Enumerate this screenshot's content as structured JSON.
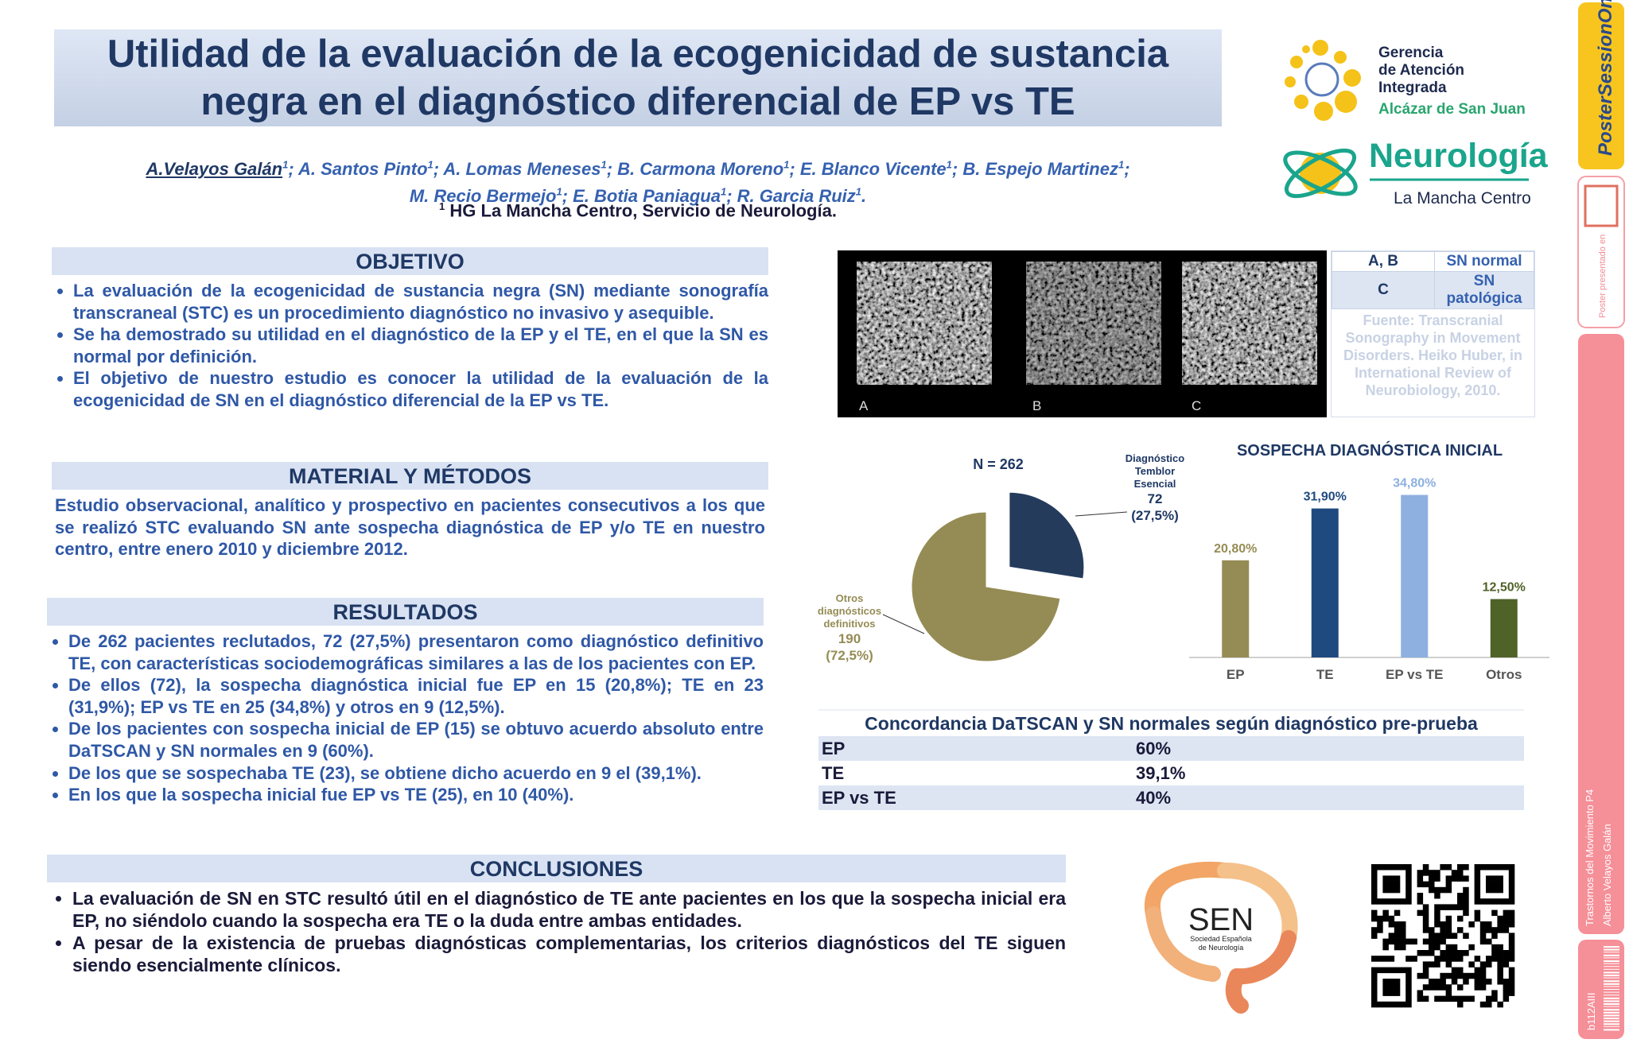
{
  "header": {
    "title": "Utilidad de la evaluación de la ecogenicidad de sustancia negra en el diagnóstico diferencial de EP vs TE",
    "authors": [
      [
        {
          "name": "A.Velayos Galán",
          "sup": "1",
          "sep": ";"
        },
        {
          "name": "A. Santos Pinto",
          "sup": "1",
          "sep": ";"
        },
        {
          "name": "A. Lomas Meneses",
          "sup": "1",
          "sep": ";"
        },
        {
          "name": "B. Carmona Moreno",
          "sup": "1",
          "sep": ";"
        },
        {
          "name": "E. Blanco Vicente",
          "sup": "1",
          "sep": ";"
        },
        {
          "name": "B. Espejo Martinez",
          "sup": "1",
          "sep": ";"
        }
      ],
      [
        {
          "name": "M. Recio Bermejo",
          "sup": "1",
          "sep": ";"
        },
        {
          "name": "E. Botia Paniagua",
          "sup": "1",
          "sep": ";"
        },
        {
          "name": "R. Garcia Ruiz",
          "sup": "1",
          "sep": "."
        }
      ]
    ],
    "affiliation": {
      "sup": "1",
      "text": "HG La Mancha Centro, Servicio de Neurología."
    }
  },
  "logos": {
    "gerencia": [
      "Gerencia",
      "de Atención",
      "Integrada"
    ],
    "place": "Alcázar de San Juan",
    "dept": "Neurología",
    "center": "La Mancha Centro",
    "sen": "SEN",
    "sen_name": [
      "Sociedad Española",
      "de Neurología"
    ]
  },
  "sidebar": {
    "brand": "PosterSessionOnline",
    "presented": "Poster presentado en",
    "session": "Trastornos del Movimiento P4",
    "author": "Alberto Velayos Galán",
    "code": "b112AIII"
  },
  "sections": [
    {
      "title": "OBJETIVO",
      "items": [
        "La evaluación de la ecogenicidad de sustancia negra (SN) mediante sonografía transcraneal (STC) es un procedimiento diagnóstico no invasivo y asequible.",
        "Se ha demostrado su utilidad en el diagnóstico de la EP y el TE, en el que la SN es normal por definición.",
        "El objetivo de nuestro estudio es conocer la utilidad de la evaluación de la ecogenicidad de SN en el diagnóstico diferencial de la EP vs TE."
      ]
    },
    {
      "title": "MATERIAL Y MÉTODOS",
      "text": "Estudio observacional, analítico y prospectivo en pacientes consecutivos a los que se realizó STC evaluando SN ante sospecha diagnóstica de EP y/o TE en nuestro centro, entre enero 2010 y diciembre 2012."
    },
    {
      "title": "RESULTADOS",
      "items": [
        "De 262 pacientes reclutados, 72 (27,5%) presentaron como diagnóstico definitivo TE, con características sociodemográficas similares a las de los pacientes con EP.",
        "De ellos (72), la sospecha diagnóstica inicial fue EP en 15 (20,8%); TE en 23 (31,9%); EP vs TE en 25 (34,8%) y otros en 9 (12,5%).",
        "De los pacientes con sospecha inicial de EP (15) se obtuvo acuerdo absoluto entre DaTSCAN y SN normales en 9 (60%).",
        "De los que se sospechaba TE (23), se obtiene dicho acuerdo en 9 el (39,1%).",
        "En los que la sospecha inicial fue EP vs TE (25), en 10 (40%)."
      ]
    },
    {
      "title": "CONCLUSIONES",
      "items": [
        "La evaluación de SN en STC resultó útil en el diagnóstico de TE ante pacientes en los que la sospecha inicial era EP, no siéndolo cuando la sospecha era TE o la duda entre ambas entidades.",
        "A pesar de la existencia de pruebas diagnósticas complementarias, los criterios diagnósticos del TE siguen siendo esencialmente clínicos."
      ]
    }
  ],
  "figure": {
    "panels": [
      "A",
      "B",
      "C"
    ],
    "table": {
      "rows": [
        [
          "A, B",
          "SN normal"
        ],
        [
          "C",
          "SN patológica"
        ]
      ]
    },
    "source": "Fuente: Transcranial Sonography in Movement Disorders. Heiko Huber, in International Review of Neurobiology, 2010."
  },
  "chart_data": [
    {
      "type": "pie",
      "title": "N = 262",
      "labels": [
        "Diagnóstico Temblor Esencial",
        "Otros diagnósticos definitivos"
      ],
      "values": [
        72,
        190
      ],
      "percent_labels": [
        "(27,5%)",
        "(72,5%)"
      ],
      "colors": [
        "#243b5c",
        "#958c55"
      ]
    },
    {
      "type": "bar",
      "title": "SOSPECHA DIAGNÓSTICA INICIAL",
      "categories": [
        "EP",
        "TE",
        "EP vs TE",
        "Otros"
      ],
      "values": [
        20.8,
        31.9,
        34.8,
        12.5
      ],
      "value_labels": [
        "20,80%",
        "31,90%",
        "34,80%",
        "12,50%"
      ],
      "colors": [
        "#958c55",
        "#1f4a7f",
        "#8db0e0",
        "#4f6228"
      ],
      "ylim": [
        0,
        40
      ]
    }
  ],
  "concordance": {
    "title": "Concordancia DaTSCAN y SN normales según diagnóstico pre-prueba",
    "rows": [
      [
        "EP",
        "60%"
      ],
      [
        "TE",
        "39,1%"
      ],
      [
        "EP vs TE",
        "40%"
      ]
    ]
  }
}
